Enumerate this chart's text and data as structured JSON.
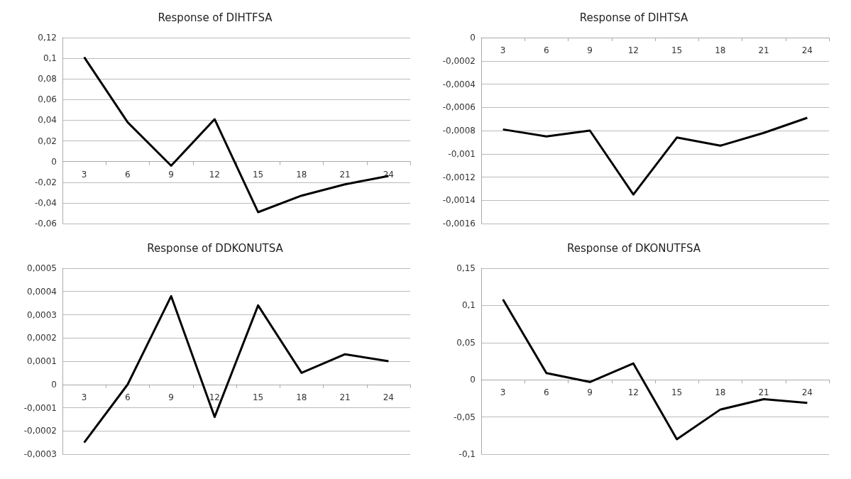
{
  "chart_data": [
    {
      "type": "line",
      "title": "Response of DIHTFSA",
      "categories": [
        "3",
        "6",
        "9",
        "12",
        "15",
        "18",
        "21",
        "24"
      ],
      "values": [
        0.101,
        0.038,
        -0.004,
        0.041,
        -0.049,
        -0.033,
        -0.022,
        -0.014
      ],
      "color": "#000000",
      "ylim": [
        -0.06,
        0.12
      ],
      "yticks": [
        {
          "value": -0.06,
          "label": "-0,06"
        },
        {
          "value": -0.04,
          "label": "-0,04"
        },
        {
          "value": -0.02,
          "label": "-0,02"
        },
        {
          "value": 0,
          "label": "0"
        },
        {
          "value": 0.02,
          "label": "0,02"
        },
        {
          "value": 0.04,
          "label": "0,04"
        },
        {
          "value": 0.06,
          "label": "0,06"
        },
        {
          "value": 0.08,
          "label": "0,08"
        },
        {
          "value": 0.1,
          "label": "0,1"
        },
        {
          "value": 0.12,
          "label": "0,12"
        }
      ],
      "grid": "y",
      "marker": "none"
    },
    {
      "type": "line",
      "title": "Response of DIHTSA",
      "categories": [
        "3",
        "6",
        "9",
        "12",
        "15",
        "18",
        "21",
        "24"
      ],
      "values": [
        -0.00079,
        -0.00085,
        -0.0008,
        -0.00135,
        -0.00086,
        -0.00093,
        -0.00082,
        -0.00069
      ],
      "color": "#000000",
      "ylim": [
        -0.0016,
        0
      ],
      "yticks": [
        {
          "value": -0.0016,
          "label": "-0,0016"
        },
        {
          "value": -0.0014,
          "label": "-0,0014"
        },
        {
          "value": -0.0012,
          "label": "-0,0012"
        },
        {
          "value": -0.001,
          "label": "-0,001"
        },
        {
          "value": -0.0008,
          "label": "-0,0008"
        },
        {
          "value": -0.0006,
          "label": "-0,0006"
        },
        {
          "value": -0.0004,
          "label": "-0,0004"
        },
        {
          "value": -0.0002,
          "label": "-0,0002"
        },
        {
          "value": 0,
          "label": "0"
        }
      ],
      "grid": "y",
      "marker": "none"
    },
    {
      "type": "line",
      "title": "Response of DDKONUTSA",
      "categories": [
        "3",
        "6",
        "9",
        "12",
        "15",
        "18",
        "21",
        "24"
      ],
      "values": [
        -0.00025,
        0.0,
        0.00038,
        -0.00014,
        0.00034,
        5e-05,
        0.00013,
        0.0001
      ],
      "color": "#000000",
      "ylim": [
        -0.0003,
        0.0005
      ],
      "yticks": [
        {
          "value": -0.0003,
          "label": "-0,0003"
        },
        {
          "value": -0.0002,
          "label": "-0,0002"
        },
        {
          "value": -0.0001,
          "label": "-0,0001"
        },
        {
          "value": 0,
          "label": "0"
        },
        {
          "value": 0.0001,
          "label": "0,0001"
        },
        {
          "value": 0.0002,
          "label": "0,0002"
        },
        {
          "value": 0.0003,
          "label": "0,0003"
        },
        {
          "value": 0.0004,
          "label": "0,0004"
        },
        {
          "value": 0.0005,
          "label": "0,0005"
        }
      ],
      "grid": "y",
      "marker": "none"
    },
    {
      "type": "line",
      "title": "Response of DKONUTFSA",
      "categories": [
        "3",
        "6",
        "9",
        "12",
        "15",
        "18",
        "21",
        "24"
      ],
      "values": [
        0.108,
        0.009,
        -0.003,
        0.022,
        -0.08,
        -0.04,
        -0.026,
        -0.031
      ],
      "color": "#000000",
      "ylim": [
        -0.1,
        0.15
      ],
      "yticks": [
        {
          "value": -0.1,
          "label": "-0,1"
        },
        {
          "value": -0.05,
          "label": "-0,05"
        },
        {
          "value": 0,
          "label": "0"
        },
        {
          "value": 0.05,
          "label": "0,05"
        },
        {
          "value": 0.1,
          "label": "0,1"
        },
        {
          "value": 0.15,
          "label": "0,15"
        }
      ],
      "grid": "y",
      "marker": "none"
    }
  ]
}
